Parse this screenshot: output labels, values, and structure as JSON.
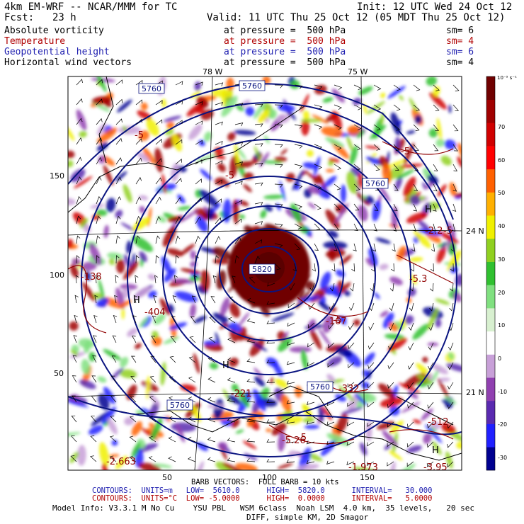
{
  "header": {
    "model": "4km EM-WRF -- NCAR/MMM for TC",
    "init": "Init: 12 UTC Wed 24 Oct 12",
    "fcst_label": "Fcst:",
    "fcst_value": "23 h",
    "valid": "Valid: 11 UTC Thu 25 Oct 12 (05 MDT Thu 25 Oct 12)"
  },
  "fields": [
    {
      "name": "Absolute vorticity",
      "pressure": "at pressure =  500 hPa",
      "sm": "sm= 6",
      "color": "#000000"
    },
    {
      "name": "Temperature",
      "pressure": "at pressure =  500 hPa",
      "sm": "sm= 4",
      "color": "#b00000"
    },
    {
      "name": "Geopotential height",
      "pressure": "at pressure =  500 hPa",
      "sm": "sm= 6",
      "color": "#2020b0"
    },
    {
      "name": "Horizontal wind vectors",
      "pressure": "at pressure =  500 hPa",
      "sm": "sm= 4",
      "color": "#000000"
    }
  ],
  "axes": {
    "lon_labels": [
      "78 W",
      "75 W"
    ],
    "lat_labels": [
      "24 N",
      "21 N"
    ],
    "x_ticks": [
      "50",
      "100",
      "150"
    ],
    "y_ticks": [
      "150",
      "100",
      "50"
    ]
  },
  "colorbar": {
    "unit": "10⁻⁵ s⁻¹",
    "labels": [
      "70",
      "60",
      "50",
      "40",
      "30",
      "20",
      "10",
      "0",
      "-10",
      "-20",
      "-30"
    ],
    "colors": [
      "#000090",
      "#2020ff",
      "#5a2ab0",
      "#9040b0",
      "#c8a0d8",
      "#ffffff",
      "#d8f0d0",
      "#80e080",
      "#30c030",
      "#90d020",
      "#f0f000",
      "#ffb000",
      "#ff6000",
      "#ff0000",
      "#d00000",
      "#a00000",
      "#700000"
    ]
  },
  "map_labels": {
    "height_labels": [
      "5760",
      "5760",
      "5760",
      "5760",
      "5760",
      "5820"
    ],
    "temp_labels": [
      "-5",
      "-5",
      "-5",
      "-5",
      "-5",
      "-5"
    ],
    "marks": [
      "H",
      "H",
      "H",
      "H"
    ],
    "values": [
      "-138",
      "-404",
      "-167",
      "-221",
      "-332",
      "-5.26",
      "-2.663",
      "-3.95",
      "-512",
      "-1.973",
      "-5.3",
      "-2.2"
    ]
  },
  "footer": {
    "barb": "BARB VECTORS:  FULL BARB = 10 kts",
    "contours1": "CONTOURS:  UNITS=m   LOW=  5610.0      HIGH=  5820.0      INTERVAL=   30.000",
    "contours2": "CONTOURS:  UNITS=°C  LOW= -5.0000      HIGH=  0.0000      INTERVAL=   5.0000",
    "model_info": "Model Info: V3.3.1 M No Cu    YSU PBL   WSM 6class  Noah LSM  4.0 km,  35 levels,   20 sec",
    "diff": "DIFF, simple KM, 2D Smagor"
  }
}
